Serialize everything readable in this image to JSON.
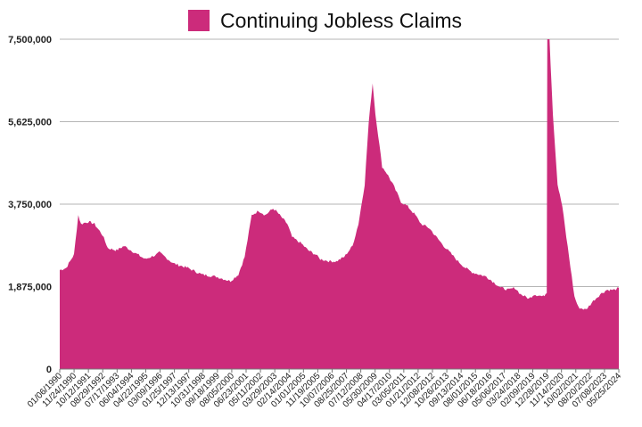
{
  "chart_data": {
    "type": "area",
    "series": [
      {
        "name": "Continuing Jobless Claims",
        "color": "#cc2b7b",
        "x": [
          "1990-01-06",
          "1990-06-01",
          "1990-11-24",
          "1991-03-01",
          "1991-05-01",
          "1991-10-12",
          "1992-03-01",
          "1992-08-29",
          "1993-01-01",
          "1993-07-17",
          "1994-01-01",
          "1994-06-04",
          "1995-04-22",
          "1996-01-01",
          "1996-03-09",
          "1997-01-25",
          "1997-12-13",
          "1998-10-31",
          "1999-09-18",
          "2000-03-01",
          "2000-08-05",
          "2001-02-01",
          "2001-06-23",
          "2001-12-01",
          "2002-05-11",
          "2002-10-01",
          "2003-03-29",
          "2003-06-01",
          "2004-02-14",
          "2004-06-01",
          "2005-01-01",
          "2005-06-01",
          "2005-11-19",
          "2006-03-01",
          "2006-10-07",
          "2007-03-01",
          "2007-08-25",
          "2008-03-01",
          "2008-07-12",
          "2008-12-01",
          "2009-03-01",
          "2009-05-30",
          "2009-08-01",
          "2010-01-01",
          "2010-04-17",
          "2010-09-01",
          "2011-03-05",
          "2011-08-01",
          "2012-01-21",
          "2012-06-01",
          "2012-12-08",
          "2013-04-01",
          "2013-10-26",
          "2014-05-01",
          "2014-09-13",
          "2015-03-01",
          "2015-08-01",
          "2016-06-18",
          "2017-01-01",
          "2017-05-06",
          "2017-11-01",
          "2018-03-24",
          "2018-08-01",
          "2019-02-09",
          "2019-06-01",
          "2019-12-28",
          "2020-03-14",
          "2020-03-28",
          "2020-04-25",
          "2020-05-16",
          "2020-08-01",
          "2020-11-14",
          "2021-03-01",
          "2021-06-01",
          "2021-10-02",
          "2021-12-01",
          "2022-03-01",
          "2022-08-20",
          "2023-02-01",
          "2023-07-08",
          "2023-12-01",
          "2024-05-25",
          "2024-09-01"
        ],
        "values": [
          2250000,
          2300000,
          2600000,
          3500000,
          3300000,
          3350000,
          3300000,
          3050000,
          2750000,
          2700000,
          2800000,
          2700000,
          2500000,
          2600000,
          2650000,
          2400000,
          2300000,
          2150000,
          2100000,
          2050000,
          2000000,
          2150000,
          2550000,
          3500000,
          3600000,
          3500000,
          3650000,
          3600000,
          3300000,
          3000000,
          2850000,
          2700000,
          2600000,
          2500000,
          2450000,
          2450000,
          2550000,
          2800000,
          3300000,
          4200000,
          5600000,
          6500000,
          5800000,
          4600000,
          4450000,
          4200000,
          3800000,
          3700000,
          3500000,
          3300000,
          3200000,
          3050000,
          2800000,
          2600000,
          2450000,
          2300000,
          2200000,
          2100000,
          1950000,
          1850000,
          1800000,
          1850000,
          1700000,
          1600000,
          1700000,
          1650000,
          1750000,
          7500000,
          7500000,
          7500000,
          5800000,
          4200000,
          3700000,
          3000000,
          2100000,
          1650000,
          1400000,
          1350000,
          1550000,
          1700000,
          1800000,
          1800000,
          1850000
        ]
      }
    ],
    "x_tick_labels": [
      "01/06/1990",
      "11/24/1990",
      "10/12/1991",
      "08/29/1992",
      "07/17/1993",
      "06/04/1994",
      "04/22/1995",
      "03/09/1996",
      "01/25/1997",
      "12/13/1997",
      "10/31/1998",
      "09/18/1999",
      "08/05/2000",
      "06/23/2001",
      "05/11/2002",
      "03/29/2003",
      "02/14/2004",
      "01/01/2005",
      "11/19/2005",
      "10/07/2006",
      "08/25/2007",
      "07/12/2008",
      "05/30/2009",
      "04/17/2010",
      "03/05/2011",
      "01/21/2012",
      "12/08/2012",
      "10/26/2013",
      "09/13/2014",
      "08/01/2015",
      "06/18/2016",
      "05/06/2017",
      "03/24/2018",
      "02/09/2019",
      "12/28/2019",
      "11/14/2020",
      "10/02/2021",
      "08/20/2022",
      "07/08/2023",
      "05/25/2024"
    ],
    "y_ticks": [
      0,
      1875000,
      3750000,
      5625000,
      7500000
    ],
    "y_tick_labels": [
      "0",
      "1,875,000",
      "3,750,000",
      "5,625,000",
      "7,500,000"
    ],
    "ylim": [
      0,
      7500000
    ],
    "xlim": [
      "1990-01-06",
      "2024-09-01"
    ],
    "grid": "horizontal",
    "legend": "top-center",
    "title": "",
    "xlabel": "",
    "ylabel": ""
  }
}
